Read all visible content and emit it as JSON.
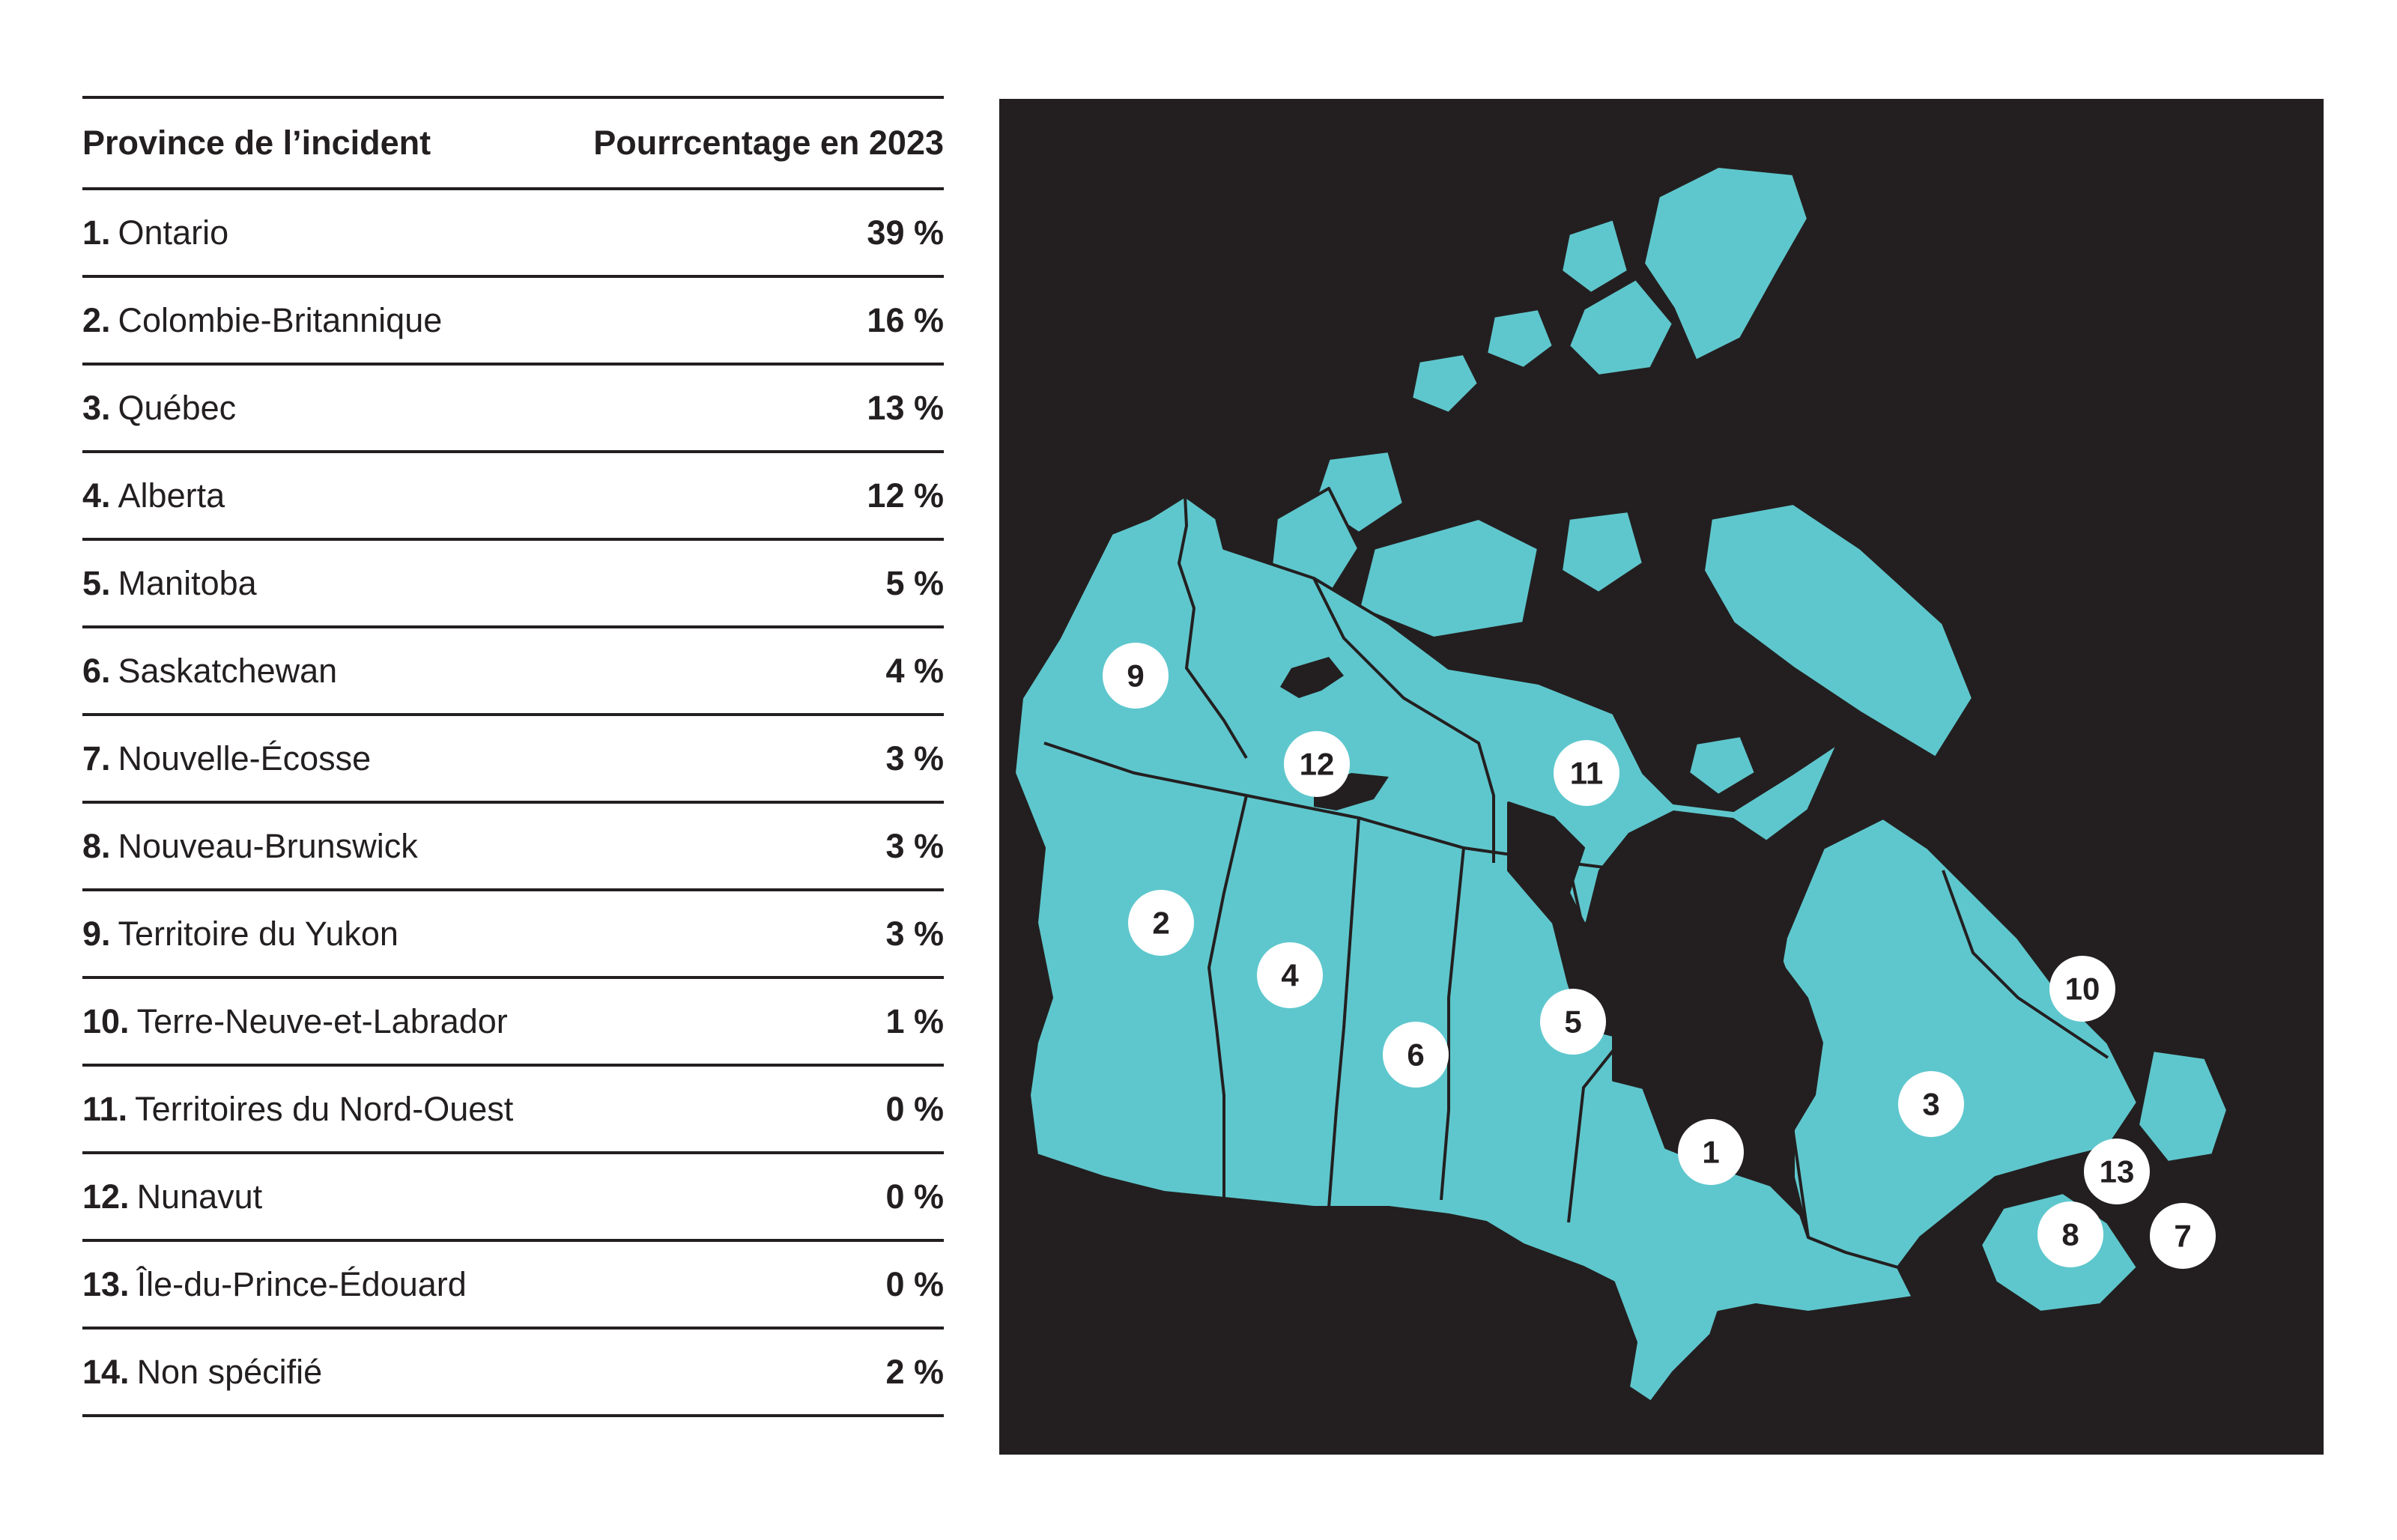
{
  "table": {
    "header": {
      "province": "Province de l’incident",
      "percentage": "Pourrcentage en 2023"
    },
    "rows": [
      {
        "num": "1.",
        "name": "Ontario",
        "pct": "39 %"
      },
      {
        "num": "2.",
        "name": "Colombie-Britannique",
        "pct": "16 %"
      },
      {
        "num": "3.",
        "name": "Québec",
        "pct": "13 %"
      },
      {
        "num": "4.",
        "name": "Alberta",
        "pct": "12 %"
      },
      {
        "num": "5.",
        "name": "Manitoba",
        "pct": "5 %"
      },
      {
        "num": "6.",
        "name": "Saskatchewan",
        "pct": "4 %"
      },
      {
        "num": "7.",
        "name": "Nouvelle-Écosse",
        "pct": "3 %"
      },
      {
        "num": "8.",
        "name": "Nouveau-Brunswick",
        "pct": "3 %"
      },
      {
        "num": "9.",
        "name": "Territoire du Yukon",
        "pct": "3 %"
      },
      {
        "num": "10.",
        "name": "Terre-Neuve-et-Labrador",
        "pct": "1 %"
      },
      {
        "num": "11.",
        "name": "Territoires du Nord-Ouest",
        "pct": "0 %"
      },
      {
        "num": "12.",
        "name": "Nunavut",
        "pct": "0 %"
      },
      {
        "num": "13.",
        "name": "Île-du-Prince-Édouard",
        "pct": "0 %"
      },
      {
        "num": "14.",
        "name": "Non spécifié",
        "pct": "2 %"
      }
    ]
  },
  "map": {
    "markers": [
      "1",
      "2",
      "3",
      "4",
      "5",
      "6",
      "7",
      "8",
      "9",
      "10",
      "11",
      "12",
      "13"
    ],
    "colors": {
      "land": "#5ec7cd",
      "background": "#231f20",
      "marker": "#ffffff"
    }
  }
}
